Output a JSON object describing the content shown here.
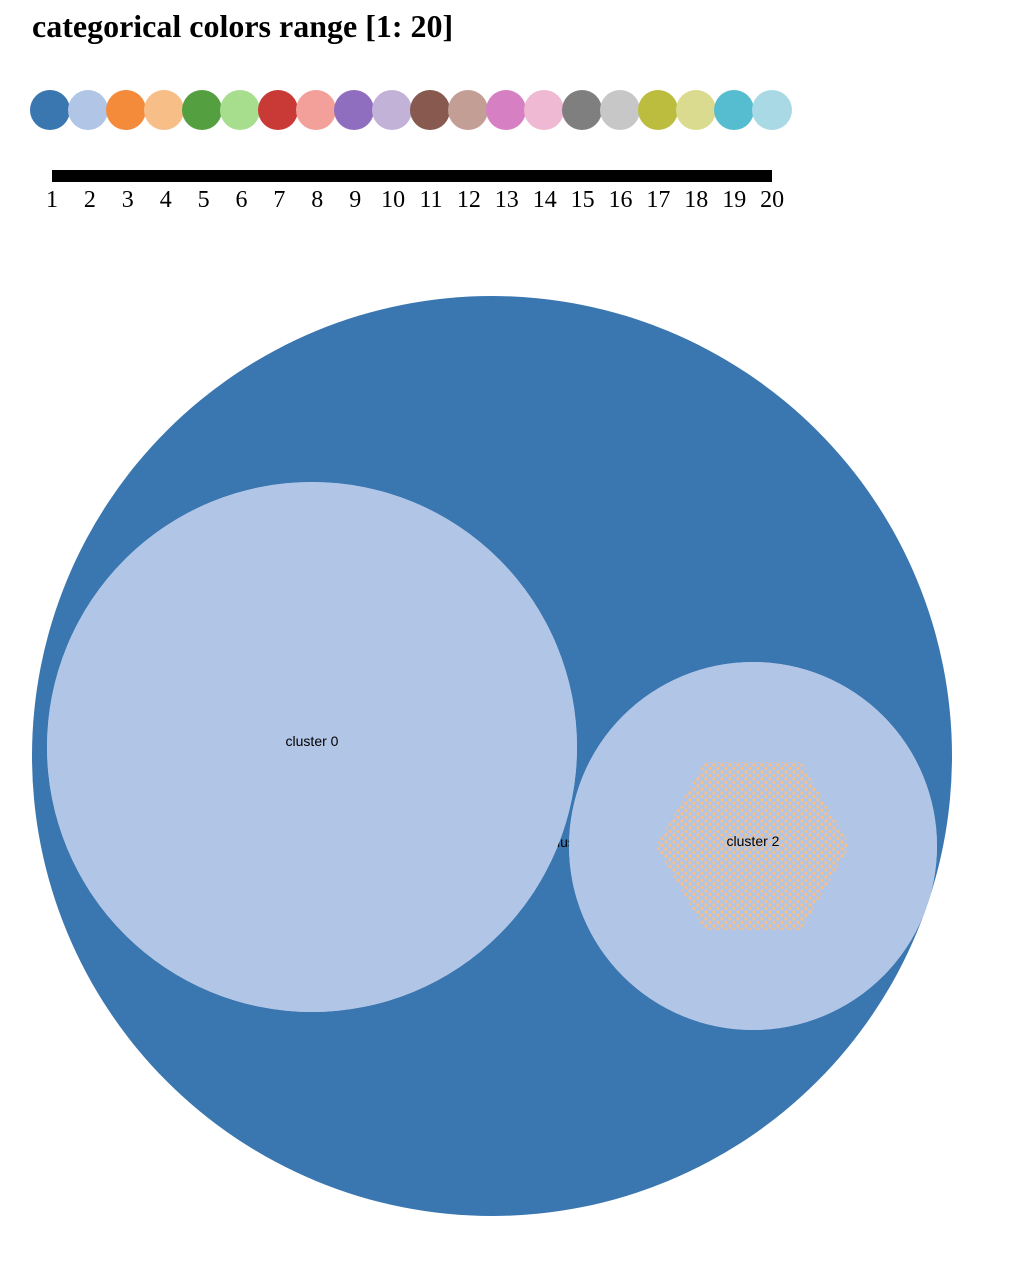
{
  "title": "categorical colors range [1: 20]",
  "palette": {
    "colors": [
      "#3a76b0",
      "#b1c6e6",
      "#f38b3b",
      "#f7be88",
      "#54a040",
      "#a7de8e",
      "#c93a36",
      "#f3a09a",
      "#8f6dbf",
      "#c2b2d8",
      "#87594f",
      "#c29e95",
      "#d67fc2",
      "#efb8d3",
      "#7f7f7f",
      "#c7c7c7",
      "#bcbd3f",
      "#dbdb90",
      "#56bccf",
      "#a8d9e5"
    ],
    "tick_labels": [
      "1",
      "2",
      "3",
      "4",
      "5",
      "6",
      "7",
      "8",
      "9",
      "10",
      "11",
      "12",
      "13",
      "14",
      "15",
      "16",
      "17",
      "18",
      "19",
      "20"
    ]
  },
  "clusters": [
    {
      "label": "cluster 0",
      "color": "#b1c6e6"
    },
    {
      "label": "cluster 1",
      "color": "#f38b3b"
    },
    {
      "label": "cluster 2",
      "color": "#b1c6e6"
    }
  ],
  "outer_color": "#3a76b0",
  "hexagon_dot_color": "#f7be88"
}
